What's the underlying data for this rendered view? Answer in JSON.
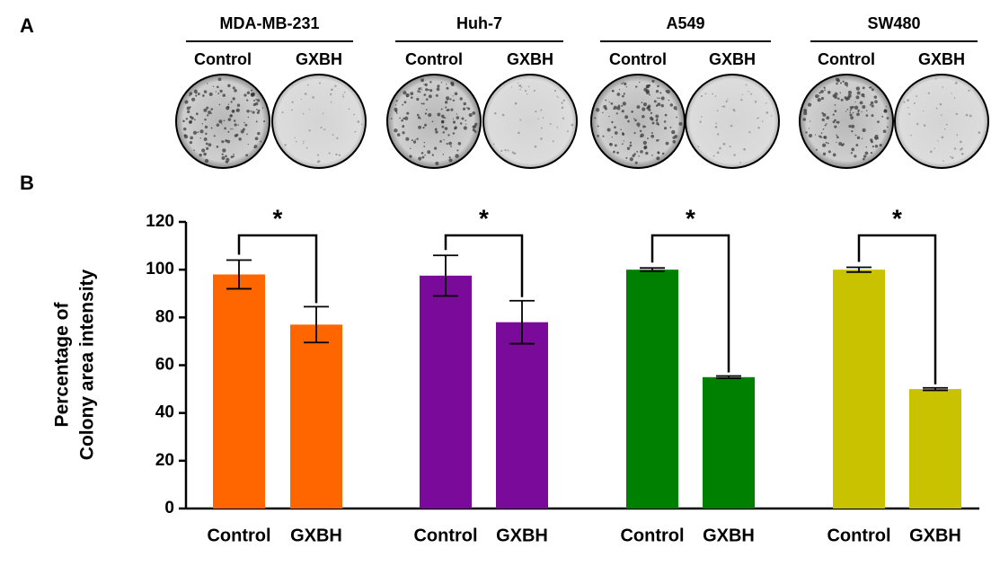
{
  "panel_a": {
    "label": "A",
    "cell_lines": [
      {
        "name": "MDA-MB-231",
        "conditions": [
          "Control",
          "GXBH"
        ]
      },
      {
        "name": "Huh-7",
        "conditions": [
          "Control",
          "GXBH"
        ]
      },
      {
        "name": "A549",
        "conditions": [
          "Control",
          "GXBH"
        ]
      },
      {
        "name": "SW480",
        "conditions": [
          "Control",
          "GXBH"
        ]
      }
    ]
  },
  "chart_data": {
    "type": "bar",
    "panel_label": "B",
    "y_label": [
      "Percentage of",
      "Colony area intensity"
    ],
    "ylim": [
      0,
      120
    ],
    "yticks": [
      0,
      20,
      40,
      60,
      80,
      100,
      120
    ],
    "categories": [
      "Control",
      "GXBH"
    ],
    "groups": [
      {
        "color": "#ff6600",
        "values": [
          98,
          77
        ],
        "errors": [
          6,
          7.5
        ],
        "annotation": "*"
      },
      {
        "color": "#7a0a99",
        "values": [
          97.5,
          78
        ],
        "errors": [
          8.5,
          9
        ],
        "annotation": "*"
      },
      {
        "color": "#008000",
        "values": [
          100,
          55
        ],
        "errors": [
          0.7,
          0.5
        ],
        "annotation": "*"
      },
      {
        "color": "#c8c200",
        "values": [
          100,
          50
        ],
        "errors": [
          1,
          0.5
        ],
        "annotation": "*"
      }
    ]
  }
}
